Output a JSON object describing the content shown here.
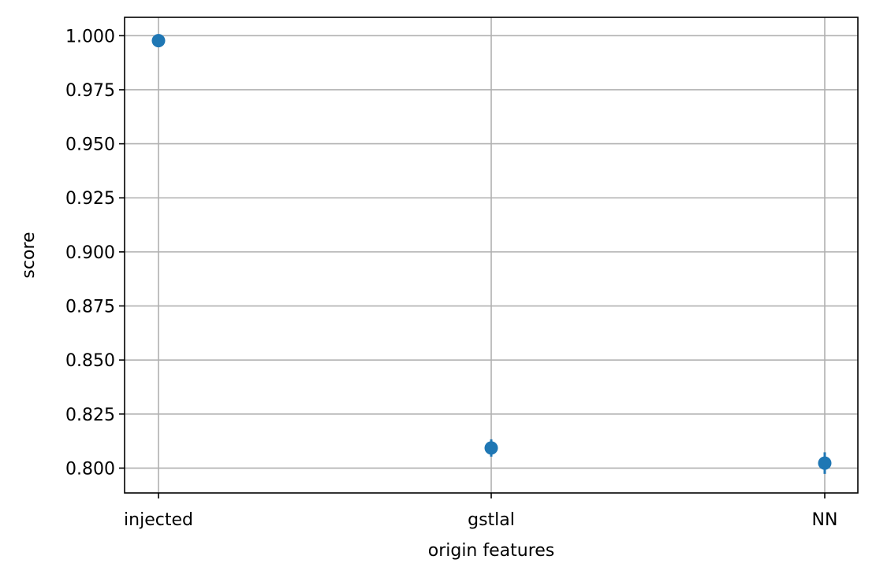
{
  "chart_data": {
    "type": "scatter",
    "title": "",
    "xlabel": "origin features",
    "ylabel": "score",
    "categories": [
      "injected",
      "gstlal",
      "NN"
    ],
    "series": [
      {
        "values": [
          0.9977,
          0.8093,
          0.8023
        ],
        "error": [
          0.001,
          0.004,
          0.005
        ]
      }
    ],
    "ylim": [
      0.7885,
      1.0085
    ],
    "yticks": [
      0.8,
      0.825,
      0.85,
      0.875,
      0.9,
      0.925,
      0.95,
      0.975,
      1.0
    ],
    "ytick_labels": [
      "0.800",
      "0.825",
      "0.850",
      "0.875",
      "0.900",
      "0.925",
      "0.950",
      "0.975",
      "1.000"
    ],
    "grid": true,
    "marker_color": "#1f77b4"
  }
}
